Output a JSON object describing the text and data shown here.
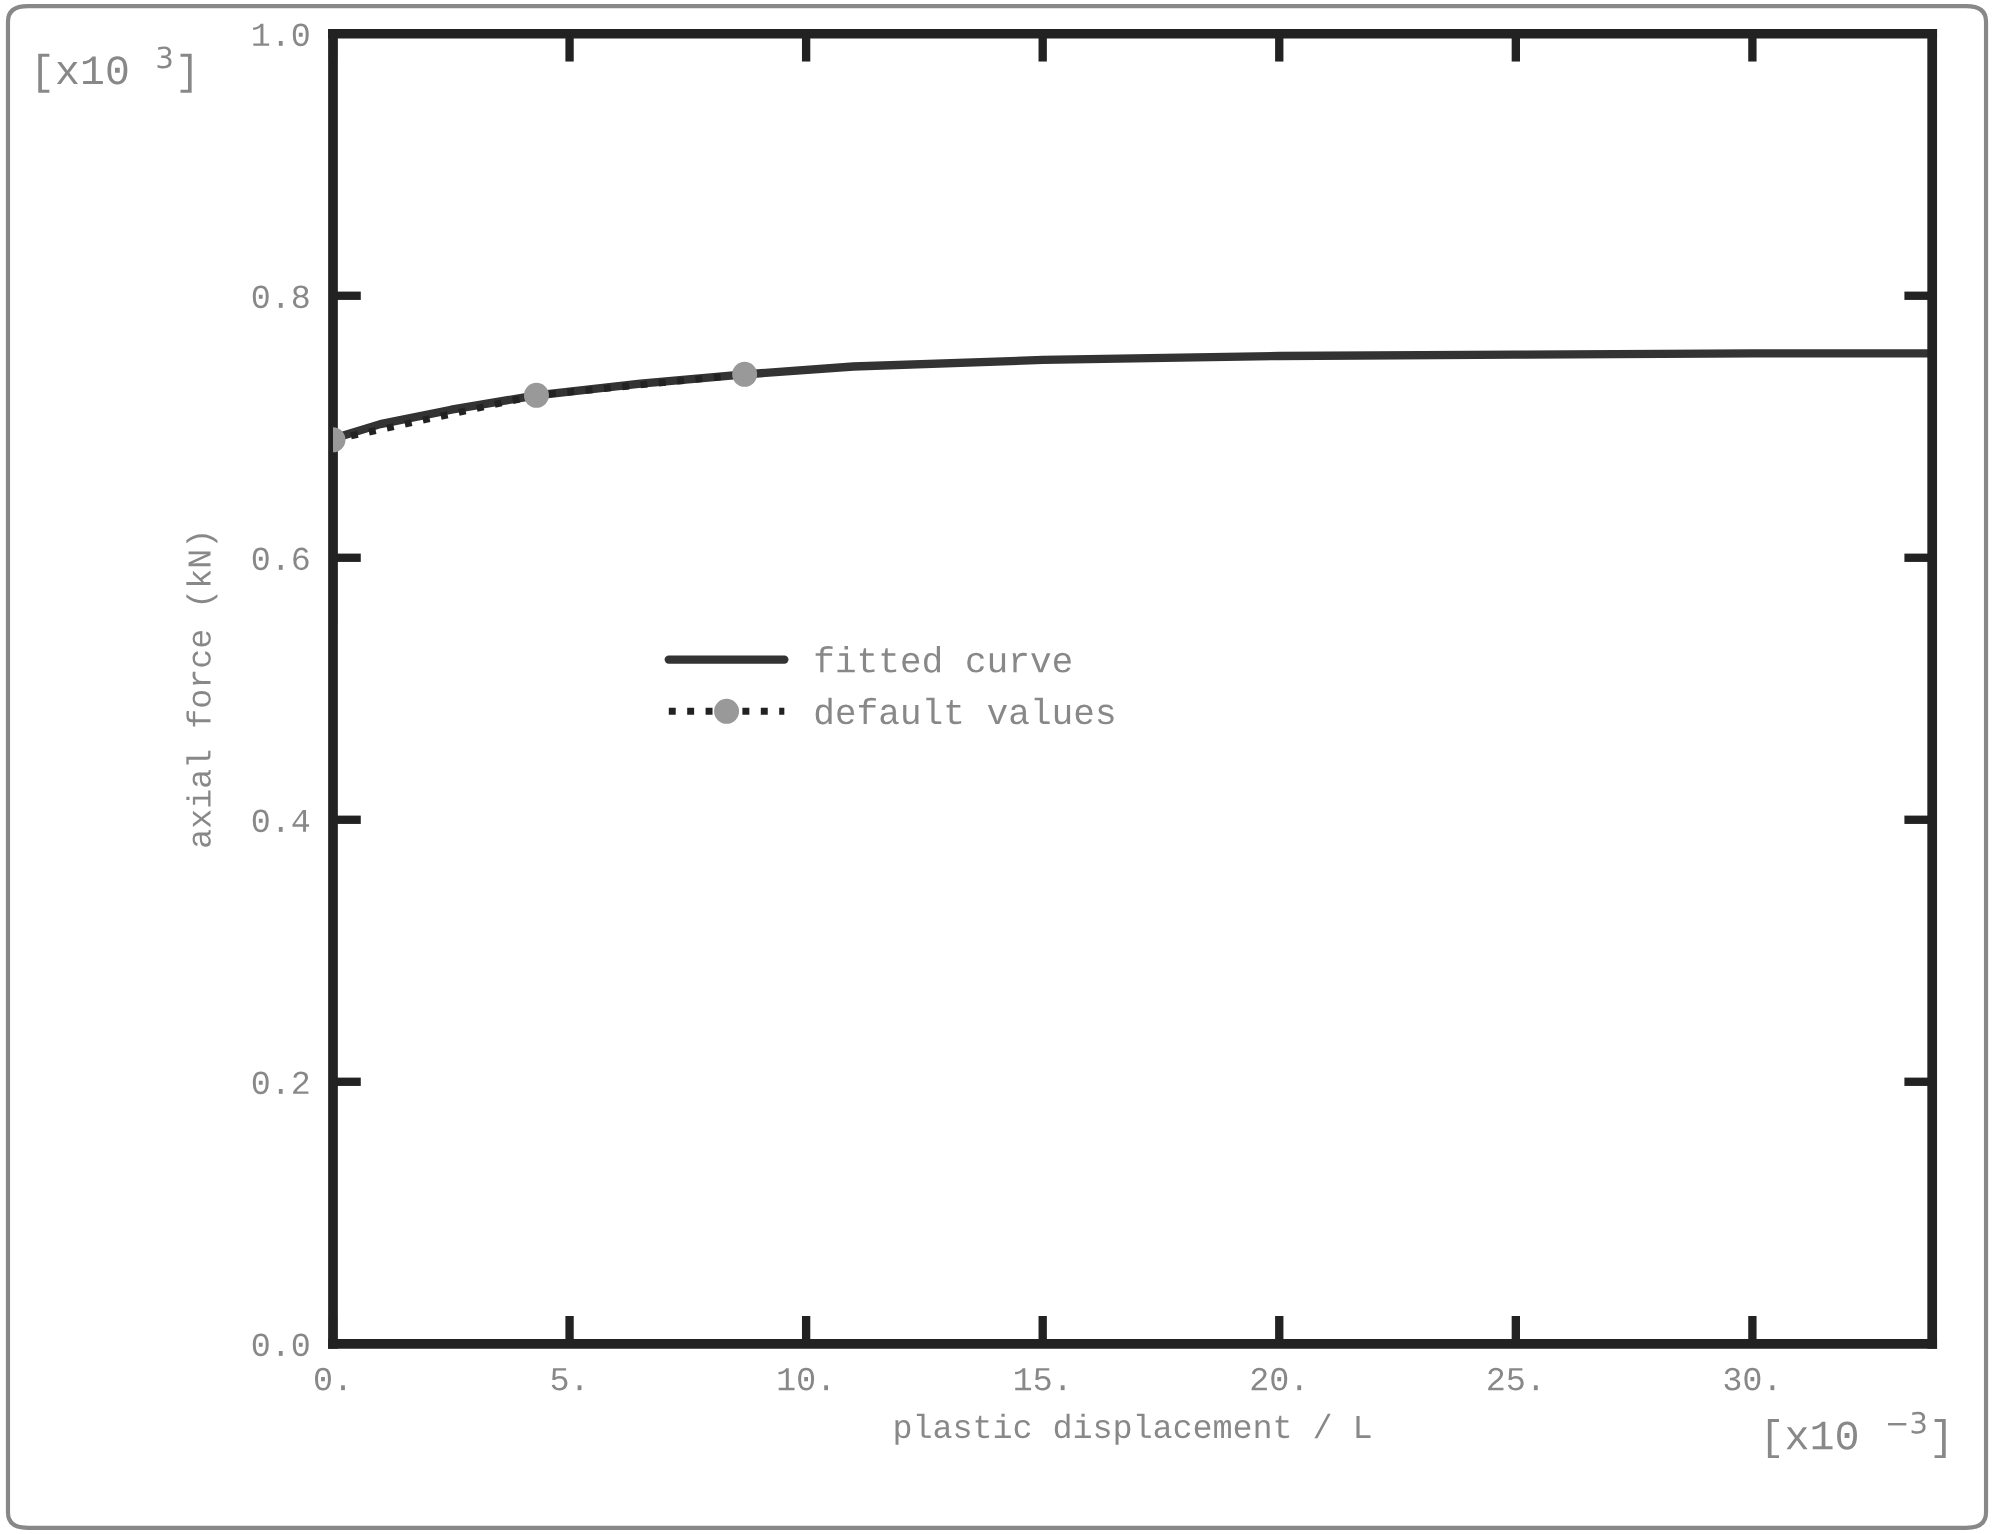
{
  "chart_data": {
    "type": "line",
    "xlabel": "plastic displacement / L",
    "ylabel": "axial force (kN)",
    "annotations": [
      "[x10 $^{3}$]",
      "[x10 $^{−3}$]"
    ],
    "xlim": [
      0,
      33.8
    ],
    "ylim": [
      0,
      1.0
    ],
    "xticks": [
      {
        "value": 0,
        "label": "0."
      },
      {
        "value": 5,
        "label": "5."
      },
      {
        "value": 10,
        "label": "10."
      },
      {
        "value": 15,
        "label": "15."
      },
      {
        "value": 20,
        "label": "20."
      },
      {
        "value": 25,
        "label": "25."
      },
      {
        "value": 30,
        "label": "30."
      }
    ],
    "yticks": [
      {
        "value": 0,
        "label": "0.0"
      },
      {
        "value": 0.2,
        "label": "0.2"
      },
      {
        "value": 0.4,
        "label": "0.4"
      },
      {
        "value": 0.6,
        "label": "0.6"
      },
      {
        "value": 0.8,
        "label": "0.8"
      },
      {
        "value": 1.0,
        "label": "1.0"
      }
    ],
    "grid": false,
    "legend": "center",
    "series": [
      {
        "name": "fitted curve",
        "color": "#333333",
        "line_style": "solid",
        "marker": "none",
        "x": [
          0,
          0,
          0.1,
          1,
          2.5,
          4.3,
          6.5,
          8.7,
          11,
          15,
          20,
          25,
          30,
          33.8
        ],
        "values": [
          0.55,
          0.69,
          0.692,
          0.702,
          0.713,
          0.724,
          0.733,
          0.74,
          0.746,
          0.751,
          0.754,
          0.755,
          0.756,
          0.756
        ]
      },
      {
        "name": "default values",
        "color": "#999999",
        "line_style": "dotted",
        "marker": "circle",
        "x": [
          0,
          4.3,
          8.7
        ],
        "values": [
          0.69,
          0.724,
          0.74
        ]
      }
    ]
  }
}
